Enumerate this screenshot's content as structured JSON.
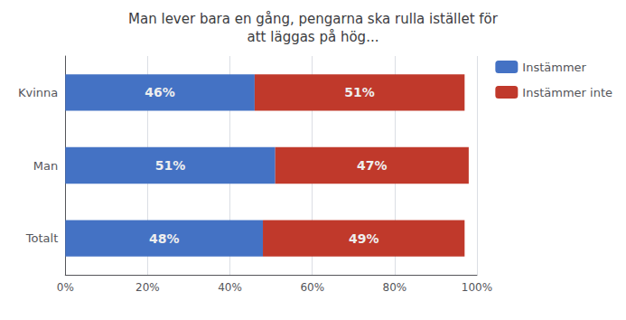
{
  "chart_data": {
    "type": "bar",
    "orientation": "horizontal",
    "stacked": true,
    "title": "Man lever bara en gång, pengarna ska rulla istället för\natt läggas på hög...",
    "categories": [
      "Totalt",
      "Man",
      "Kvinna"
    ],
    "series": [
      {
        "name": "Instämmer",
        "color": "#4472C4",
        "values": [
          48,
          51,
          46
        ],
        "value_labels": [
          "48%",
          "51%",
          "46%"
        ]
      },
      {
        "name": "Instämmer inte",
        "color": "#C0392B",
        "values": [
          49,
          47,
          51
        ],
        "value_labels": [
          "49%",
          "47%",
          "51%"
        ]
      }
    ],
    "xlim": [
      0,
      100
    ],
    "xticks": [
      {
        "value": 0,
        "label": "0%"
      },
      {
        "value": 20,
        "label": "20%"
      },
      {
        "value": 40,
        "label": "40%"
      },
      {
        "value": 60,
        "label": "60%"
      },
      {
        "value": 80,
        "label": "80%"
      },
      {
        "value": 100,
        "label": "100%"
      }
    ],
    "grid": true,
    "legend": "right",
    "data_labels": true
  }
}
